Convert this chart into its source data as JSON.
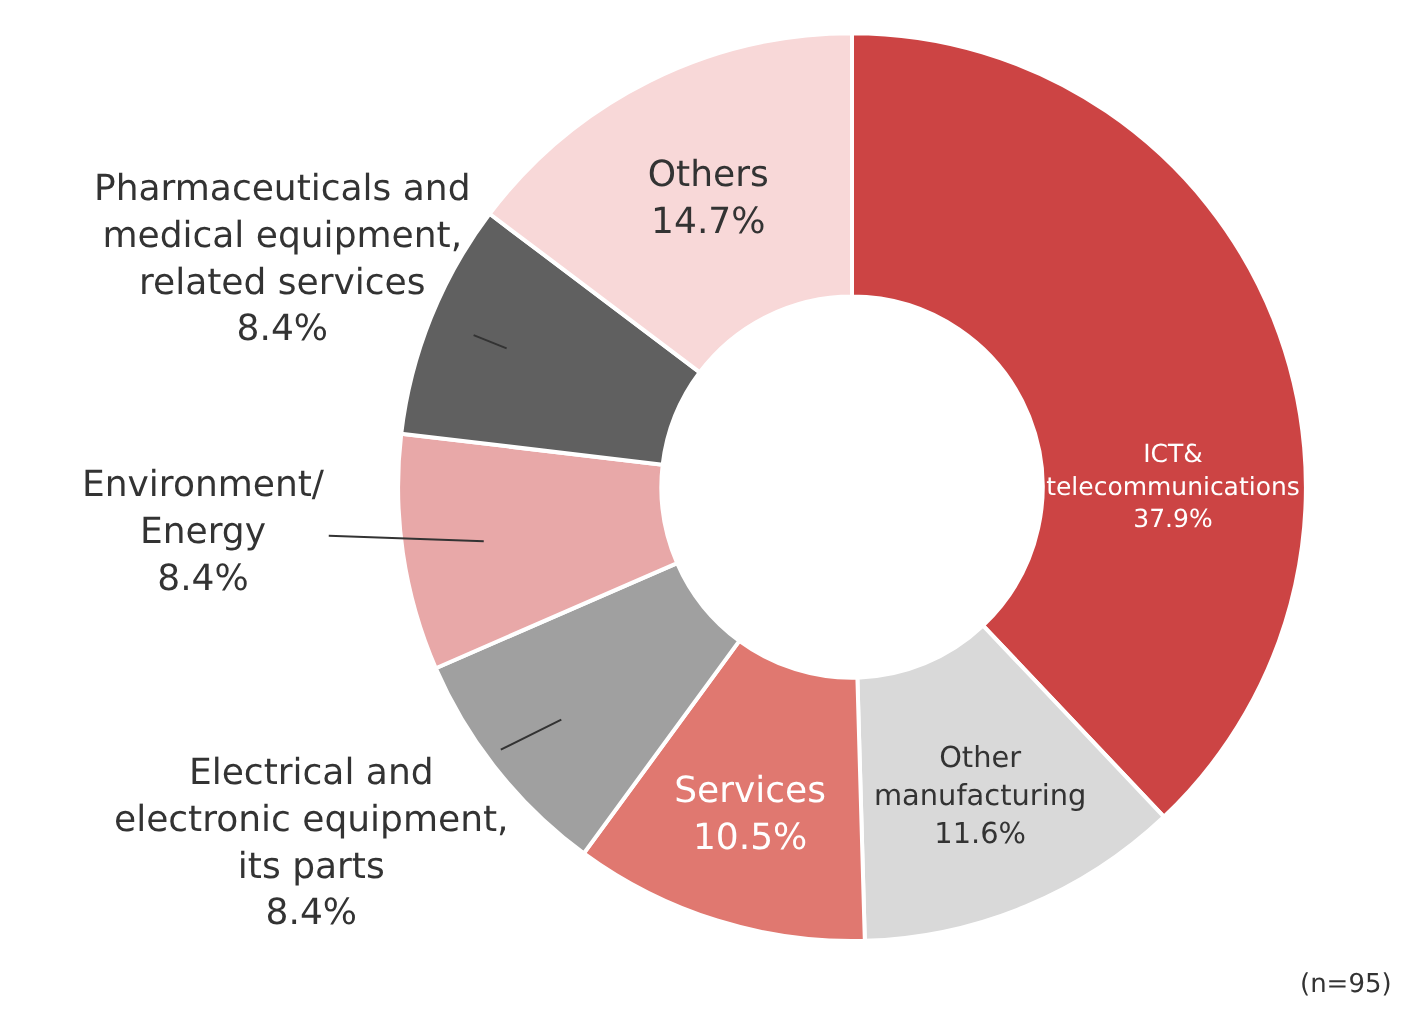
{
  "chart_data": {
    "type": "donut",
    "categories": [
      "ICT& telecommunications",
      "Other manufacturing",
      "Services",
      "Electrical and electronic equipment, its parts",
      "Environment/ Energy",
      "Pharmaceuticals and medical equipment, related services",
      "Others"
    ],
    "values": [
      37.9,
      11.6,
      10.5,
      8.4,
      8.4,
      8.4,
      14.7
    ],
    "colors": [
      "#cc4444",
      "#d9d9d9",
      "#e07870",
      "#a0a0a0",
      "#e8a8a8",
      "#606060",
      "#f8d8d8"
    ],
    "value_labels": [
      "37.9%",
      "11.6%",
      "10.5%",
      "8.4%",
      "8.4%",
      "8.4%",
      "14.7%"
    ],
    "annotations": [
      "(n=95)"
    ]
  }
}
